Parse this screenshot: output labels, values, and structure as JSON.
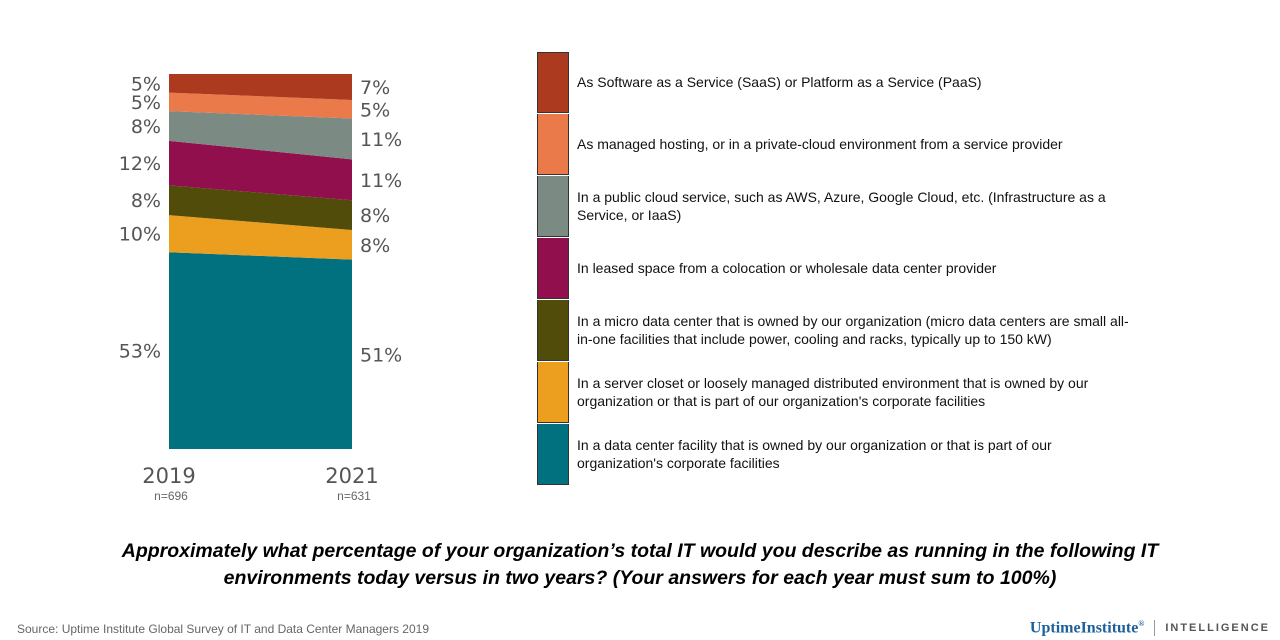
{
  "chart_data": {
    "type": "stacked-area",
    "title": "Approximately what percentage of your organization’s total IT would you describe as running in the following IT environments today versus in two years? (Your answers for each year must sum to 100%)",
    "x": [
      "2019",
      "2021"
    ],
    "sample_sizes": [
      "n=696",
      "n=631"
    ],
    "ylim": [
      0,
      101
    ],
    "series": [
      {
        "name": "In a data center facility that is owned by our organization or that is part of our organization's corporate facilities",
        "color": "#01707f",
        "values": [
          53,
          51
        ],
        "labels": [
          "53%",
          "51%"
        ]
      },
      {
        "name": "In a server closet or loosely managed distributed environment that is owned by our organization or that is part of our organization's corporate facilities",
        "color": "#ec9e1f",
        "values": [
          10,
          8
        ],
        "labels": [
          "10%",
          "8%"
        ]
      },
      {
        "name": "In a micro data center that is owned by our organization (micro data centers are small all-in-one facilities that include power, cooling and racks, typically up to 150 kW)",
        "color": "#524c0a",
        "values": [
          8,
          8
        ],
        "labels": [
          "8%",
          "8%"
        ]
      },
      {
        "name": "In leased space from a colocation or wholesale data center provider",
        "color": "#900f4c",
        "values": [
          12,
          11
        ],
        "labels": [
          "12%",
          "11%"
        ]
      },
      {
        "name": "In a public cloud service, such as AWS, Azure, Google Cloud, etc. (Infrastructure as a Service, or IaaS)",
        "color": "#7b8a83",
        "values": [
          8,
          11
        ],
        "labels": [
          "8%",
          "11%"
        ]
      },
      {
        "name": "As managed hosting, or in a private-cloud environment from a service provider",
        "color": "#ea7a4a",
        "values": [
          5,
          5
        ],
        "labels": [
          "5%",
          "5%"
        ]
      },
      {
        "name": "As Software as a Service (SaaS) or Platform as a Service (PaaS)",
        "color": "#ac3a1f",
        "values": [
          5,
          7
        ],
        "labels": [
          "5%",
          "7%"
        ]
      }
    ]
  },
  "footer": {
    "source": "Source: Uptime Institute Global Survey of IT and Data Center Managers 2019",
    "brand_name": "UptimeInstitute",
    "brand_mark": "®",
    "brand_sub": "INTELLIGENCE"
  }
}
